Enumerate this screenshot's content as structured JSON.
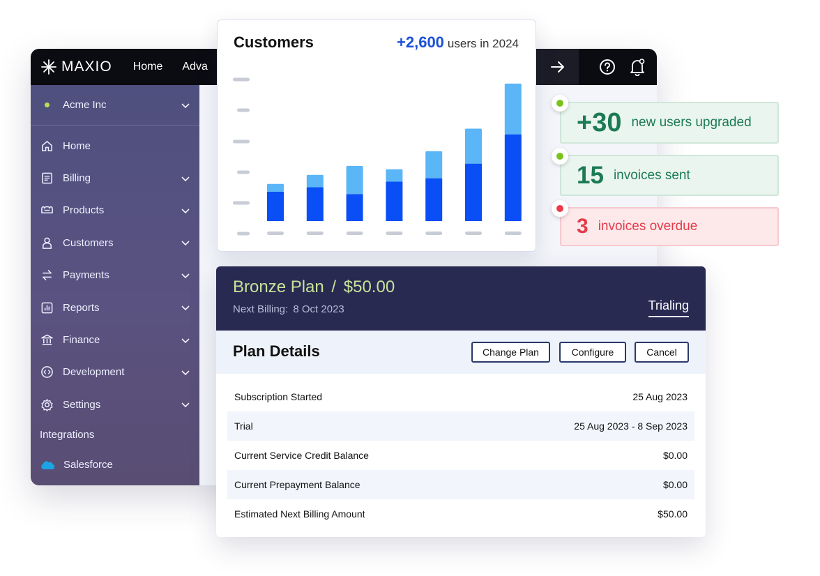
{
  "app": {
    "brand": "MAXIO",
    "nav": {
      "home": "Home",
      "advanced": "Adva"
    },
    "org_name": "Acme Inc"
  },
  "sidebar": {
    "items": [
      {
        "label": "Home",
        "icon": "home-icon"
      },
      {
        "label": "Billing",
        "icon": "billing-icon"
      },
      {
        "label": "Products",
        "icon": "products-icon"
      },
      {
        "label": "Customers",
        "icon": "customers-icon"
      },
      {
        "label": "Payments",
        "icon": "payments-icon"
      },
      {
        "label": "Reports",
        "icon": "reports-icon"
      },
      {
        "label": "Finance",
        "icon": "finance-icon"
      },
      {
        "label": "Development",
        "icon": "development-icon"
      },
      {
        "label": "Settings",
        "icon": "settings-icon"
      }
    ],
    "section_label": "Integrations",
    "integration": "Salesforce"
  },
  "chart_card": {
    "title": "Customers",
    "stat_value": "+2,600",
    "stat_label": "users in 2024"
  },
  "chart_data": {
    "type": "bar",
    "stacked": true,
    "categories": [
      "",
      "",
      "",
      "",
      "",
      "",
      ""
    ],
    "series": [
      {
        "values": [
          26,
          30,
          24,
          35,
          38,
          51,
          77
        ],
        "color": "#0a4ff5"
      },
      {
        "values": [
          7,
          11,
          25,
          11,
          24,
          31,
          45
        ],
        "color": "#5ab6f7"
      }
    ],
    "ylim": [
      0,
      130
    ],
    "grid": false
  },
  "stats": [
    {
      "value": "+30",
      "label": "new users upgraded",
      "tone": "green",
      "dot_color": "#7ac31a"
    },
    {
      "value": "15",
      "label": "invoices sent",
      "tone": "green",
      "dot_color": "#7ac31a"
    },
    {
      "value": "3",
      "label": "invoices overdue",
      "tone": "red",
      "dot_color": "#ec3b48"
    }
  ],
  "plan": {
    "name": "Bronze Plan",
    "separator": "/",
    "price": "$50.00",
    "billing_label": "Next Billing:",
    "billing_date": "8 Oct 2023",
    "status_tab": "Trialing",
    "details_title": "Plan Details",
    "buttons": {
      "change": "Change Plan",
      "configure": "Configure",
      "cancel": "Cancel"
    },
    "rows": [
      {
        "label": "Subscription Started",
        "value": "25 Aug 2023"
      },
      {
        "label": "Trial",
        "value": "25 Aug 2023 - 8 Sep 2023"
      },
      {
        "label": "Current Service Credit Balance",
        "value": "$0.00"
      },
      {
        "label": "Current Prepayment Balance",
        "value": "$0.00"
      },
      {
        "label": "Estimated Next Billing Amount",
        "value": "$50.00"
      }
    ]
  },
  "colors": {
    "accent_blue": "#1a4fd8",
    "green_text": "#1c7a55",
    "red_text": "#e23d4b",
    "plan_header": "#282a52",
    "plan_name": "#c8e39a"
  }
}
